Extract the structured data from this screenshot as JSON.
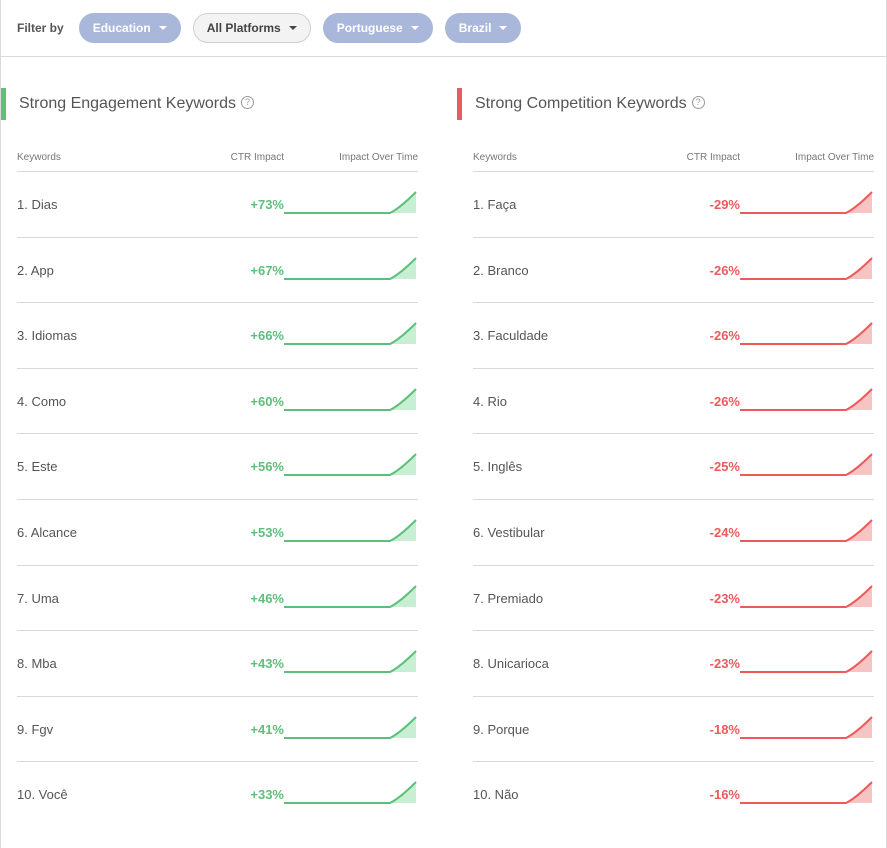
{
  "filters": {
    "label": "Filter by",
    "pills": [
      {
        "label": "Education",
        "style": "blue"
      },
      {
        "label": "All Platforms",
        "style": "grey"
      },
      {
        "label": "Portuguese",
        "style": "blue"
      },
      {
        "label": "Brazil",
        "style": "blue"
      }
    ]
  },
  "colors": {
    "engagement": "#5cc07a",
    "engagement_fill": "#c8efd4",
    "competition": "#ec5a5a",
    "competition_fill": "#f7c4c4",
    "pill_blue": "#a9b8da"
  },
  "engagement": {
    "title": "Strong Engagement Keywords",
    "help": "?",
    "columns": {
      "keyword": "Keywords",
      "ctr": "CTR Impact",
      "time": "Impact Over Time"
    },
    "rows": [
      {
        "keyword": "1. Dias",
        "ctr": "+73%"
      },
      {
        "keyword": "2. App",
        "ctr": "+67%"
      },
      {
        "keyword": "3. Idiomas",
        "ctr": "+66%"
      },
      {
        "keyword": "4. Como",
        "ctr": "+60%"
      },
      {
        "keyword": "5. Este",
        "ctr": "+56%"
      },
      {
        "keyword": "6. Alcance",
        "ctr": "+53%"
      },
      {
        "keyword": "7. Uma",
        "ctr": "+46%"
      },
      {
        "keyword": "8. Mba",
        "ctr": "+43%"
      },
      {
        "keyword": "9. Fgv",
        "ctr": "+41%"
      },
      {
        "keyword": "10. Você",
        "ctr": "+33%"
      }
    ]
  },
  "competition": {
    "title": "Strong Competition Keywords",
    "help": "?",
    "columns": {
      "keyword": "Keywords",
      "ctr": "CTR Impact",
      "time": "Impact Over Time"
    },
    "rows": [
      {
        "keyword": "1. Faça",
        "ctr": "-29%"
      },
      {
        "keyword": "2. Branco",
        "ctr": "-26%"
      },
      {
        "keyword": "3. Faculdade",
        "ctr": "-26%"
      },
      {
        "keyword": "4. Rio",
        "ctr": "-26%"
      },
      {
        "keyword": "5. Inglês",
        "ctr": "-25%"
      },
      {
        "keyword": "6. Vestibular",
        "ctr": "-24%"
      },
      {
        "keyword": "7. Premiado",
        "ctr": "-23%"
      },
      {
        "keyword": "8. Unicarioca",
        "ctr": "-23%"
      },
      {
        "keyword": "9. Porque",
        "ctr": "-18%"
      },
      {
        "keyword": "10. Não",
        "ctr": "-16%"
      }
    ]
  }
}
